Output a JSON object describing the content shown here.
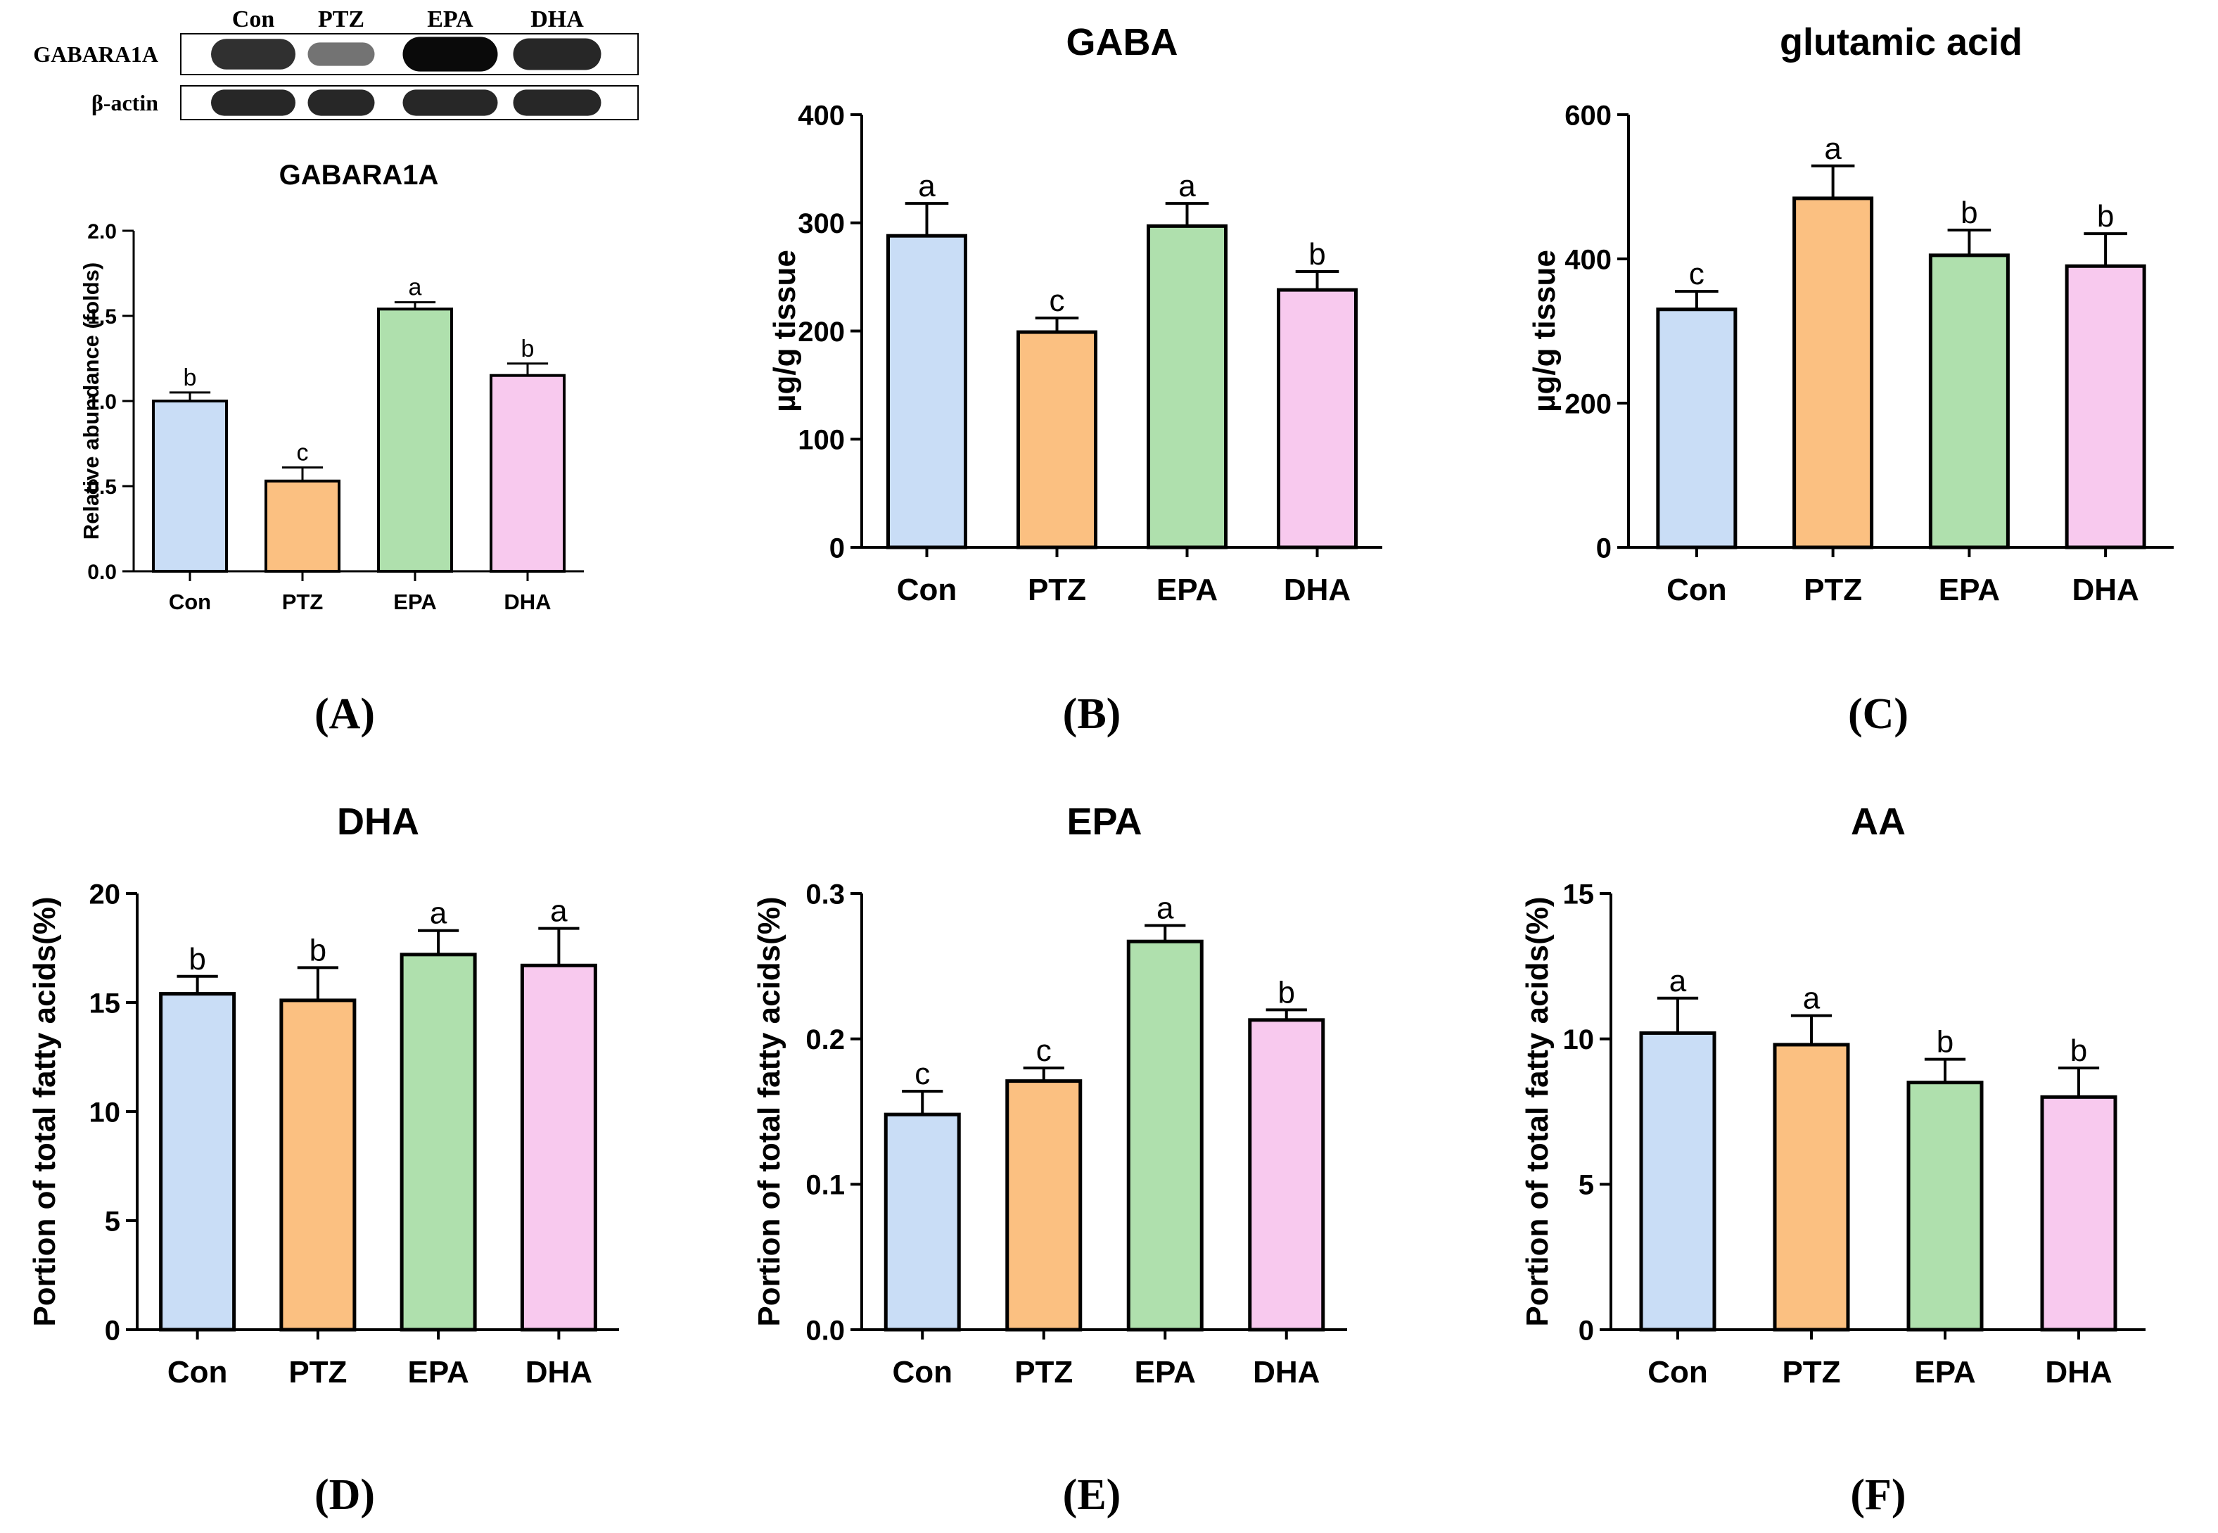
{
  "blot": {
    "lanes": [
      "Con",
      "PTZ",
      "EPA",
      "DHA"
    ],
    "rows": [
      {
        "label": "GABARA1A",
        "band_intensity": [
          0.8,
          0.45,
          1.0,
          0.85
        ]
      },
      {
        "label": "β-actin",
        "band_intensity": [
          0.85,
          0.85,
          0.85,
          0.85
        ]
      }
    ]
  },
  "colors": {
    "Con": "#c9ddf6",
    "PTZ": "#fbc081",
    "EPA": "#afe0ad",
    "DHA": "#f8c9ee",
    "axis": "#000000"
  },
  "chart_data": [
    {
      "id": "A",
      "type": "bar",
      "panel_label": "(A)",
      "title": "GABARA1A",
      "xlabel": "",
      "ylabel": "Relative abundance (folds)",
      "categories": [
        "Con",
        "PTZ",
        "EPA",
        "DHA"
      ],
      "values": [
        1.0,
        0.53,
        1.54,
        1.15
      ],
      "errors": [
        0.05,
        0.08,
        0.04,
        0.07
      ],
      "significance": [
        "b",
        "c",
        "a",
        "b"
      ],
      "ylim": [
        0,
        2.0
      ],
      "yticks": [
        "0.0",
        "0.5",
        "1.0",
        "1.5",
        "2.0"
      ]
    },
    {
      "id": "B",
      "type": "bar",
      "panel_label": "(B)",
      "title": "GABA",
      "xlabel": "",
      "ylabel": "µg/g tissue",
      "categories": [
        "Con",
        "PTZ",
        "EPA",
        "DHA"
      ],
      "values": [
        288,
        199,
        297,
        238
      ],
      "errors": [
        30,
        13,
        21,
        17
      ],
      "significance": [
        "a",
        "c",
        "a",
        "b"
      ],
      "ylim": [
        0,
        400
      ],
      "yticks": [
        "0",
        "100",
        "200",
        "300",
        "400"
      ]
    },
    {
      "id": "C",
      "type": "bar",
      "panel_label": "(C)",
      "title": "glutamic acid",
      "xlabel": "",
      "ylabel": "µg/g tissue",
      "categories": [
        "Con",
        "PTZ",
        "EPA",
        "DHA"
      ],
      "values": [
        330,
        484,
        405,
        390
      ],
      "errors": [
        25,
        45,
        35,
        45
      ],
      "significance": [
        "c",
        "a",
        "b",
        "b"
      ],
      "ylim": [
        0,
        600
      ],
      "yticks": [
        "0",
        "200",
        "400",
        "600"
      ]
    },
    {
      "id": "D",
      "type": "bar",
      "panel_label": "(D)",
      "title": "DHA",
      "xlabel": "",
      "ylabel": "Portion of total fatty acids(%)",
      "categories": [
        "Con",
        "PTZ",
        "EPA",
        "DHA"
      ],
      "values": [
        15.4,
        15.1,
        17.2,
        16.7
      ],
      "errors": [
        0.8,
        1.5,
        1.1,
        1.7
      ],
      "significance": [
        "b",
        "b",
        "a",
        "a"
      ],
      "ylim": [
        0,
        20
      ],
      "yticks": [
        "0",
        "5",
        "10",
        "15",
        "20"
      ]
    },
    {
      "id": "E",
      "type": "bar",
      "panel_label": "(E)",
      "title": "EPA",
      "xlabel": "",
      "ylabel": "Portion of total fatty acids(%)",
      "categories": [
        "Con",
        "PTZ",
        "EPA",
        "DHA"
      ],
      "values": [
        0.148,
        0.171,
        0.267,
        0.213
      ],
      "errors": [
        0.016,
        0.009,
        0.011,
        0.007
      ],
      "significance": [
        "c",
        "c",
        "a",
        "b"
      ],
      "ylim": [
        0,
        0.3
      ],
      "yticks": [
        "0.0",
        "0.1",
        "0.2",
        "0.3"
      ]
    },
    {
      "id": "F",
      "type": "bar",
      "panel_label": "(F)",
      "title": "AA",
      "xlabel": "",
      "ylabel": "Portion of total fatty acids(%)",
      "categories": [
        "Con",
        "PTZ",
        "EPA",
        "DHA"
      ],
      "values": [
        10.2,
        9.8,
        8.5,
        8.0
      ],
      "errors": [
        1.2,
        1.0,
        0.8,
        1.0
      ],
      "significance": [
        "a",
        "a",
        "b",
        "b"
      ],
      "ylim": [
        0,
        15
      ],
      "yticks": [
        "0",
        "5",
        "10",
        "15"
      ]
    }
  ]
}
